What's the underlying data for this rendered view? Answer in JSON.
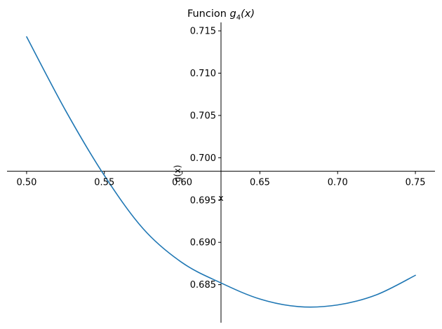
{
  "chart_data": {
    "type": "line",
    "title": "Funcion ",
    "title_math": {
      "base": "g",
      "sub": "4",
      "arg": "(x)"
    },
    "xlabel": "x",
    "ylabel": "g(x)",
    "xlim": [
      0.4874,
      0.7626
    ],
    "ylim": [
      0.6805,
      0.716
    ],
    "x_ticks": [
      0.5,
      0.55,
      0.6,
      0.65,
      0.7,
      0.75
    ],
    "x_tick_labels": [
      "0.50",
      "0.55",
      "0.60",
      "0.65",
      "0.70",
      "0.75"
    ],
    "y_ticks": [
      0.685,
      0.69,
      0.695,
      0.7,
      0.705,
      0.71,
      0.715
    ],
    "y_tick_labels": [
      "0.685",
      "0.690",
      "0.695",
      "0.700",
      "0.705",
      "0.710",
      "0.715"
    ],
    "axes_origin": {
      "x": 0.625,
      "y": 0.6984
    },
    "grid": false,
    "series": [
      {
        "color": "#1f77b4",
        "x": [
          0.5,
          0.525,
          0.55,
          0.575,
          0.6,
          0.625,
          0.65,
          0.675,
          0.7,
          0.725,
          0.75
        ],
        "y": [
          0.7143,
          0.7056,
          0.6979,
          0.6916,
          0.6876,
          0.6852,
          0.6833,
          0.6824,
          0.6826,
          0.6838,
          0.6861
        ]
      }
    ]
  }
}
